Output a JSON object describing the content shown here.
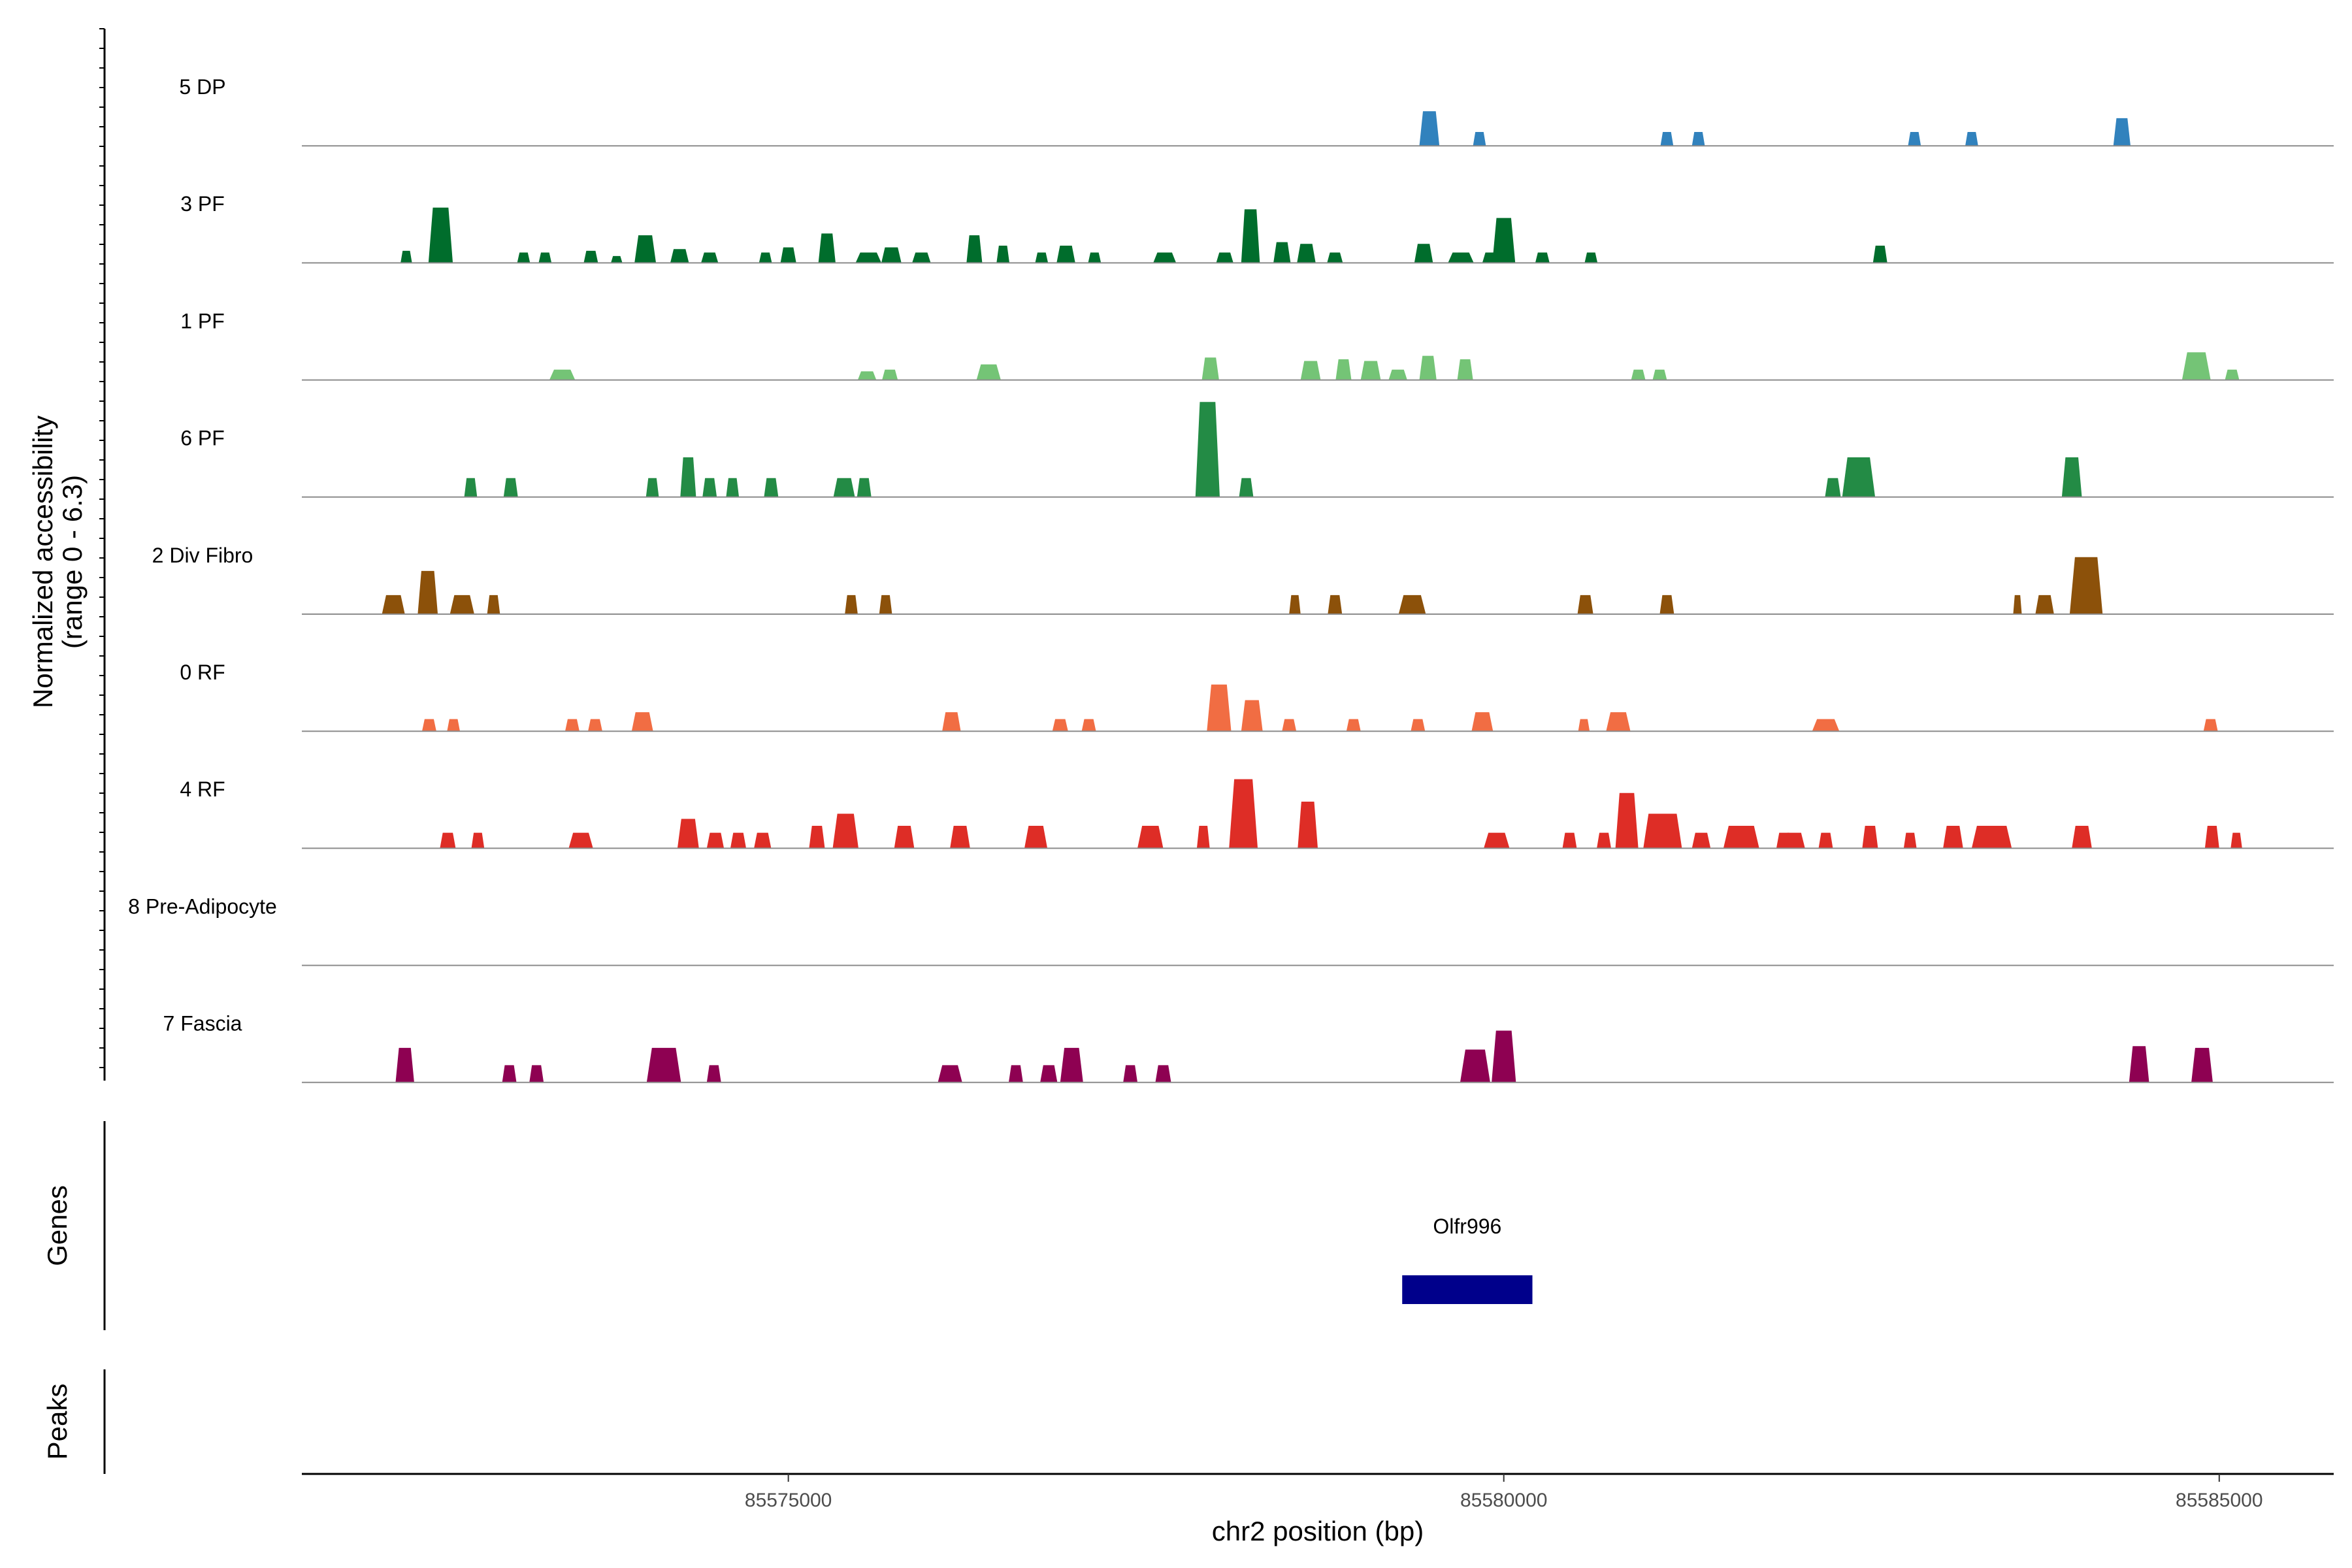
{
  "chart_data": {
    "type": "area",
    "title": "",
    "xlabel": "chr2 position (bp)",
    "ylabel_line1": "Normalized accessibility",
    "ylabel_line2": "(range 0 - 6.3)",
    "y_range": [
      0,
      6.3
    ],
    "xlim": [
      85571600,
      85585800
    ],
    "x_ticks": [
      85575000,
      85580000,
      85585000
    ],
    "x_tick_labels": [
      "85575000",
      "85580000",
      "85585000"
    ],
    "genes_label": "Genes",
    "peaks_label": "Peaks",
    "genes": [
      {
        "name": "Olfr996",
        "start": 85579290,
        "end": 85580200,
        "color": "#00008b"
      }
    ],
    "peaks": [],
    "series": [
      {
        "name": "5 DP",
        "color": "#3182bd",
        "peaks": [
          [
            85579480,
            140,
            2.0
          ],
          [
            85579830,
            90,
            0.8
          ],
          [
            85581140,
            90,
            0.8
          ],
          [
            85581360,
            90,
            0.8
          ],
          [
            85582870,
            90,
            0.8
          ],
          [
            85583270,
            90,
            0.8
          ],
          [
            85584320,
            120,
            1.6
          ]
        ]
      },
      {
        "name": "3 PF",
        "color": "#006d2c",
        "peaks": [
          [
            85572330,
            80,
            0.7
          ],
          [
            85572570,
            170,
            3.2
          ],
          [
            85573150,
            90,
            0.6
          ],
          [
            85573300,
            90,
            0.6
          ],
          [
            85573620,
            100,
            0.7
          ],
          [
            85573800,
            80,
            0.4
          ],
          [
            85574000,
            150,
            1.6
          ],
          [
            85574240,
            130,
            0.8
          ],
          [
            85574450,
            120,
            0.6
          ],
          [
            85574840,
            90,
            0.6
          ],
          [
            85575000,
            110,
            0.9
          ],
          [
            85575270,
            120,
            1.7
          ],
          [
            85575560,
            180,
            0.6
          ],
          [
            85575720,
            140,
            0.9
          ],
          [
            85575930,
            130,
            0.6
          ],
          [
            85576300,
            110,
            1.6
          ],
          [
            85576500,
            90,
            1.0
          ],
          [
            85576770,
            90,
            0.6
          ],
          [
            85576940,
            130,
            1.0
          ],
          [
            85577140,
            90,
            0.6
          ],
          [
            85577630,
            160,
            0.6
          ],
          [
            85578050,
            120,
            0.6
          ],
          [
            85578230,
            130,
            3.1
          ],
          [
            85578450,
            120,
            1.2
          ],
          [
            85578620,
            130,
            1.1
          ],
          [
            85578820,
            110,
            0.6
          ],
          [
            85579440,
            130,
            1.1
          ],
          [
            85579700,
            180,
            0.6
          ],
          [
            85579910,
            120,
            0.6
          ],
          [
            85580000,
            160,
            2.6
          ],
          [
            85580270,
            100,
            0.6
          ],
          [
            85580610,
            90,
            0.6
          ],
          [
            85582630,
            100,
            1.0
          ]
        ]
      },
      {
        "name": "1 PF",
        "color": "#74c476",
        "peaks": [
          [
            85573420,
            180,
            0.6
          ],
          [
            85575550,
            130,
            0.5
          ],
          [
            85575710,
            110,
            0.6
          ],
          [
            85576400,
            170,
            0.9
          ],
          [
            85577950,
            120,
            1.3
          ],
          [
            85578650,
            140,
            1.1
          ],
          [
            85578880,
            110,
            1.2
          ],
          [
            85579070,
            140,
            1.1
          ],
          [
            85579260,
            130,
            0.6
          ],
          [
            85579470,
            120,
            1.4
          ],
          [
            85579730,
            110,
            1.2
          ],
          [
            85580940,
            100,
            0.6
          ],
          [
            85581090,
            100,
            0.6
          ],
          [
            85584840,
            200,
            1.6
          ],
          [
            85585090,
            100,
            0.6
          ]
        ]
      },
      {
        "name": "6 PF",
        "color": "#238b45",
        "peaks": [
          [
            85572780,
            90,
            1.1
          ],
          [
            85573060,
            100,
            1.1
          ],
          [
            85574050,
            90,
            1.1
          ],
          [
            85574300,
            110,
            2.3
          ],
          [
            85574450,
            100,
            1.1
          ],
          [
            85574610,
            90,
            1.1
          ],
          [
            85574880,
            100,
            1.1
          ],
          [
            85575390,
            150,
            1.1
          ],
          [
            85575530,
            100,
            1.1
          ],
          [
            85577930,
            170,
            5.5
          ],
          [
            85578200,
            100,
            1.1
          ],
          [
            85582300,
            110,
            1.1
          ],
          [
            85582480,
            230,
            2.3
          ],
          [
            85583970,
            140,
            2.3
          ]
        ]
      },
      {
        "name": "2 Div Fibro",
        "color": "#8c510a",
        "peaks": [
          [
            85572240,
            160,
            1.1
          ],
          [
            85572480,
            140,
            2.5
          ],
          [
            85572720,
            170,
            1.1
          ],
          [
            85572940,
            90,
            1.1
          ],
          [
            85575440,
            90,
            1.1
          ],
          [
            85575680,
            90,
            1.1
          ],
          [
            85578540,
            80,
            1.1
          ],
          [
            85578820,
            100,
            1.1
          ],
          [
            85579360,
            190,
            1.1
          ],
          [
            85580570,
            110,
            1.1
          ],
          [
            85581140,
            100,
            1.1
          ],
          [
            85583590,
            60,
            1.1
          ],
          [
            85583780,
            130,
            1.1
          ],
          [
            85584070,
            230,
            3.3
          ]
        ]
      },
      {
        "name": "0 RF",
        "color": "#f16d43",
        "peaks": [
          [
            85572490,
            100,
            0.7
          ],
          [
            85572660,
            90,
            0.7
          ],
          [
            85573490,
            100,
            0.7
          ],
          [
            85573650,
            100,
            0.7
          ],
          [
            85573980,
            150,
            1.1
          ],
          [
            85576140,
            130,
            1.1
          ],
          [
            85576900,
            110,
            0.7
          ],
          [
            85577100,
            100,
            0.7
          ],
          [
            85578010,
            170,
            2.7
          ],
          [
            85578240,
            150,
            1.8
          ],
          [
            85578500,
            100,
            0.7
          ],
          [
            85578950,
            100,
            0.7
          ],
          [
            85579400,
            100,
            0.7
          ],
          [
            85579850,
            150,
            1.1
          ],
          [
            85580560,
            80,
            0.7
          ],
          [
            85580800,
            170,
            1.1
          ],
          [
            85582250,
            190,
            0.7
          ],
          [
            85584940,
            100,
            0.7
          ]
        ]
      },
      {
        "name": "4 RF",
        "color": "#de2d26",
        "peaks": [
          [
            85572620,
            110,
            0.9
          ],
          [
            85572830,
            90,
            0.9
          ],
          [
            85573550,
            170,
            0.9
          ],
          [
            85574300,
            150,
            1.7
          ],
          [
            85574490,
            120,
            0.9
          ],
          [
            85574650,
            110,
            0.9
          ],
          [
            85574820,
            120,
            0.9
          ],
          [
            85575200,
            110,
            1.3
          ],
          [
            85575400,
            180,
            2.0
          ],
          [
            85575810,
            140,
            1.3
          ],
          [
            85576200,
            140,
            1.3
          ],
          [
            85576730,
            160,
            1.3
          ],
          [
            85577530,
            180,
            1.3
          ],
          [
            85577900,
            90,
            1.3
          ],
          [
            85578180,
            200,
            4.0
          ],
          [
            85578630,
            140,
            2.7
          ],
          [
            85579950,
            180,
            0.9
          ],
          [
            85580460,
            100,
            0.9
          ],
          [
            85580700,
            100,
            0.9
          ],
          [
            85580860,
            160,
            3.2
          ],
          [
            85581110,
            270,
            2.0
          ],
          [
            85581380,
            130,
            0.9
          ],
          [
            85581660,
            250,
            1.3
          ],
          [
            85581960,
            110,
            0.9
          ],
          [
            85582030,
            150,
            0.9
          ],
          [
            85582250,
            100,
            0.9
          ],
          [
            85582560,
            110,
            1.3
          ],
          [
            85582840,
            90,
            0.9
          ],
          [
            85583140,
            140,
            1.3
          ],
          [
            85583410,
            280,
            1.3
          ],
          [
            85584040,
            140,
            1.3
          ],
          [
            85584950,
            100,
            1.3
          ],
          [
            85585120,
            80,
            0.9
          ]
        ]
      },
      {
        "name": "8 Pre-Adipocyte",
        "color": "#999999",
        "peaks": []
      },
      {
        "name": "7 Fascia",
        "color": "#8e0152",
        "peaks": [
          [
            85572320,
            130,
            2.0
          ],
          [
            85573050,
            100,
            1.0
          ],
          [
            85573240,
            100,
            1.0
          ],
          [
            85574130,
            240,
            2.0
          ],
          [
            85574480,
            100,
            1.0
          ],
          [
            85576130,
            170,
            1.0
          ],
          [
            85576590,
            100,
            1.0
          ],
          [
            85576820,
            120,
            1.0
          ],
          [
            85576980,
            160,
            2.0
          ],
          [
            85577390,
            100,
            1.0
          ],
          [
            85577620,
            110,
            1.0
          ],
          [
            85579800,
            210,
            1.9
          ],
          [
            85580000,
            170,
            3.0
          ],
          [
            85584440,
            140,
            2.1
          ],
          [
            85584880,
            150,
            2.0
          ]
        ]
      }
    ]
  }
}
